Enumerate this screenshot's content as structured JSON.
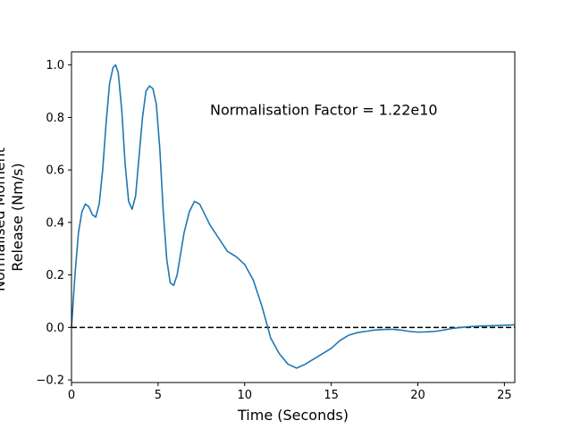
{
  "chart_data": {
    "type": "line",
    "title": "",
    "xlabel": "Time (Seconds)",
    "ylabel_lines": [
      "Normalised Moment",
      "Release (Nm/s)"
    ],
    "xlim": [
      0,
      25.6
    ],
    "ylim": [
      -0.21,
      1.05
    ],
    "xticks": [
      0,
      5,
      10,
      15,
      20,
      25
    ],
    "yticks": [
      -0.2,
      0.0,
      0.2,
      0.4,
      0.6,
      0.8,
      1.0
    ],
    "grid": false,
    "annotation": {
      "text": "Normalisation Factor = 1.22e10",
      "x": 8.0,
      "y": 0.81
    },
    "reference_line": {
      "y": 0.0,
      "style": "dashed",
      "color": "#000000"
    },
    "series": [
      {
        "color": "#1f77b4",
        "x": [
          0,
          0.2,
          0.4,
          0.6,
          0.8,
          1.0,
          1.2,
          1.4,
          1.6,
          1.8,
          2.0,
          2.2,
          2.4,
          2.55,
          2.7,
          2.9,
          3.1,
          3.3,
          3.5,
          3.7,
          3.9,
          4.1,
          4.3,
          4.5,
          4.7,
          4.9,
          5.1,
          5.3,
          5.5,
          5.7,
          5.9,
          6.1,
          6.3,
          6.5,
          6.8,
          7.1,
          7.4,
          7.7,
          8.0,
          8.5,
          9.0,
          9.5,
          10.0,
          10.5,
          11.0,
          11.5,
          12.0,
          12.5,
          13.0,
          13.5,
          14.0,
          14.5,
          15.0,
          15.5,
          16.0,
          16.5,
          17.0,
          17.5,
          18.0,
          18.5,
          19.0,
          19.5,
          20.0,
          20.5,
          21.0,
          21.5,
          22.0,
          22.5,
          23.0,
          23.5,
          24.0,
          24.5,
          25.0,
          25.6
        ],
        "y": [
          0.0,
          0.2,
          0.36,
          0.44,
          0.47,
          0.46,
          0.43,
          0.42,
          0.47,
          0.6,
          0.78,
          0.93,
          0.99,
          1.0,
          0.97,
          0.83,
          0.62,
          0.48,
          0.45,
          0.5,
          0.65,
          0.8,
          0.9,
          0.92,
          0.91,
          0.85,
          0.68,
          0.44,
          0.26,
          0.17,
          0.16,
          0.2,
          0.28,
          0.36,
          0.44,
          0.48,
          0.47,
          0.43,
          0.39,
          0.34,
          0.29,
          0.27,
          0.24,
          0.18,
          0.08,
          -0.04,
          -0.1,
          -0.14,
          -0.155,
          -0.14,
          -0.12,
          -0.1,
          -0.08,
          -0.05,
          -0.03,
          -0.02,
          -0.015,
          -0.01,
          -0.008,
          -0.007,
          -0.01,
          -0.015,
          -0.018,
          -0.017,
          -0.015,
          -0.01,
          -0.004,
          0.0,
          0.003,
          0.005,
          0.006,
          0.007,
          0.008,
          0.01
        ]
      }
    ]
  }
}
